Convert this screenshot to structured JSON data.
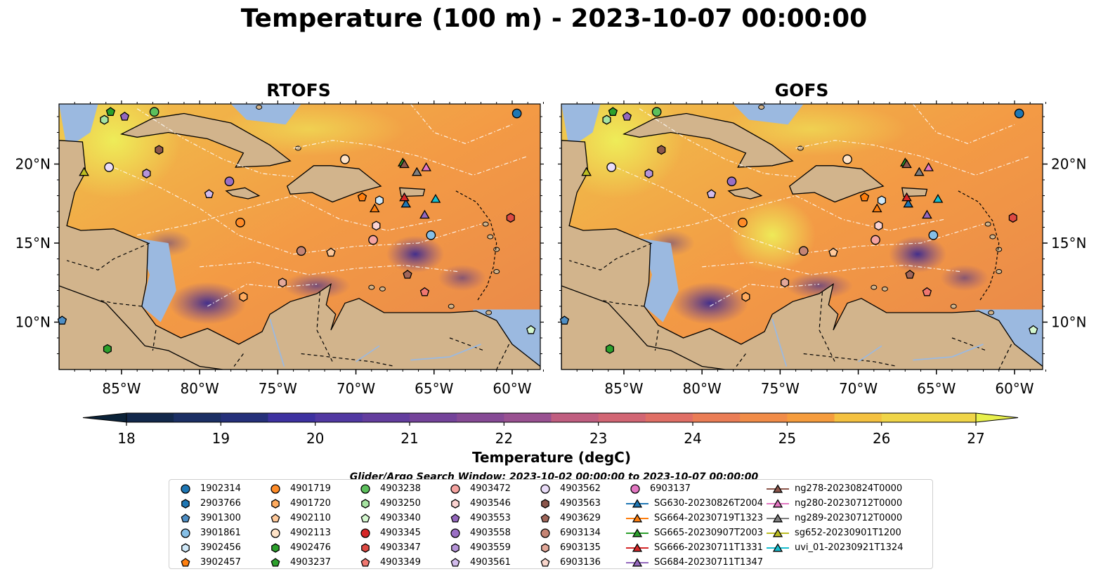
{
  "title": "Temperature (100 m) - 2023-10-07 00:00:00",
  "panels": [
    {
      "title": "RTOFS"
    },
    {
      "title": "GOFS"
    }
  ],
  "axes": {
    "lon_ticks": [
      "85°W",
      "80°W",
      "75°W",
      "70°W",
      "65°W",
      "60°W"
    ],
    "lat_ticks": [
      "20°N",
      "15°N",
      "10°N"
    ],
    "lon_values": [
      -85,
      -80,
      -75,
      -70,
      -65,
      -60
    ],
    "lat_values": [
      20,
      15,
      10
    ],
    "extent": {
      "lon_min": -89,
      "lon_max": -58.2,
      "lat_min": 7,
      "lat_max": 23.8
    }
  },
  "colorbar": {
    "label": "Temperature (degC)",
    "min": 18,
    "max": 27,
    "step": 0.5,
    "ticks": [
      "18",
      "19",
      "20",
      "21",
      "22",
      "23",
      "24",
      "25",
      "26",
      "27"
    ],
    "extend": "both"
  },
  "search_window": "Glider/Argo Search Window: 2023-10-02 00:00:00 to 2023-10-07 00:00:00",
  "colors": {
    "land": "#d2b48c",
    "shelf": "#9bb9e0",
    "deep_cold": "#0b2238",
    "warm": "#f0ad4e",
    "hot": "#e8f04c"
  },
  "legend": [
    {
      "label": "1902314",
      "marker": "circle",
      "color": "#1f77b4"
    },
    {
      "label": "2903766",
      "marker": "hexagon",
      "color": "#1f77b4"
    },
    {
      "label": "3901300",
      "marker": "pentagon",
      "color": "#4e8ec4"
    },
    {
      "label": "3901861",
      "marker": "circle",
      "color": "#86bfe6"
    },
    {
      "label": "3902456",
      "marker": "hexagon",
      "color": "#cfe8f8"
    },
    {
      "label": "3902457",
      "marker": "pentagon",
      "color": "#ff7f0e"
    },
    {
      "label": "4901719",
      "marker": "circle",
      "color": "#ff8c28"
    },
    {
      "label": "4901720",
      "marker": "hexagon",
      "color": "#ffab5e"
    },
    {
      "label": "4902110",
      "marker": "pentagon",
      "color": "#ffc99a"
    },
    {
      "label": "4902113",
      "marker": "circle",
      "color": "#ffe3c7"
    },
    {
      "label": "4902476",
      "marker": "hexagon",
      "color": "#2ca02c"
    },
    {
      "label": "4903237",
      "marker": "pentagon",
      "color": "#2ca02c"
    },
    {
      "label": "4903238",
      "marker": "circle",
      "color": "#5cbf5c"
    },
    {
      "label": "4903250",
      "marker": "hexagon",
      "color": "#a6e3a1"
    },
    {
      "label": "4903340",
      "marker": "pentagon",
      "color": "#d4f7cf"
    },
    {
      "label": "4903345",
      "marker": "circle",
      "color": "#d62728"
    },
    {
      "label": "4903347",
      "marker": "hexagon",
      "color": "#de4a43"
    },
    {
      "label": "4903349",
      "marker": "pentagon",
      "color": "#f07770"
    },
    {
      "label": "4903472",
      "marker": "circle",
      "color": "#f5a3a0"
    },
    {
      "label": "4903546",
      "marker": "hexagon",
      "color": "#fbd3d1"
    },
    {
      "label": "4903553",
      "marker": "pentagon",
      "color": "#9467bd"
    },
    {
      "label": "4903558",
      "marker": "circle",
      "color": "#9a6fc4"
    },
    {
      "label": "4903559",
      "marker": "hexagon",
      "color": "#b594d8"
    },
    {
      "label": "4903561",
      "marker": "pentagon",
      "color": "#d2bbec"
    },
    {
      "label": "4903562",
      "marker": "circle",
      "color": "#e9dcf8"
    },
    {
      "label": "4903563",
      "marker": "hexagon",
      "color": "#8c564b"
    },
    {
      "label": "4903629",
      "marker": "pentagon",
      "color": "#a0665a"
    },
    {
      "label": "6903134",
      "marker": "circle",
      "color": "#c58474"
    },
    {
      "label": "6903135",
      "marker": "hexagon",
      "color": "#e3a899"
    },
    {
      "label": "6903136",
      "marker": "pentagon",
      "color": "#f8d5cb"
    },
    {
      "label": "6903137",
      "marker": "circle",
      "color": "#e377c2"
    },
    {
      "label": "SG630-20230826T2004",
      "marker": "triangle-line",
      "color": "#1f77b4"
    },
    {
      "label": "SG664-20230719T1323",
      "marker": "triangle-line",
      "color": "#ff7f0e"
    },
    {
      "label": "SG665-20230907T2003",
      "marker": "triangle-line",
      "color": "#2ca02c"
    },
    {
      "label": "SG666-20230711T1331",
      "marker": "triangle-line",
      "color": "#d62728"
    },
    {
      "label": "SG684-20230711T1347",
      "marker": "triangle-line",
      "color": "#9467bd"
    },
    {
      "label": "ng278-20230824T0000",
      "marker": "triangle-line",
      "color": "#8c564b"
    },
    {
      "label": "ng280-20230712T0000",
      "marker": "triangle-line",
      "color": "#e377c2"
    },
    {
      "label": "ng289-20230712T0000",
      "marker": "triangle-line",
      "color": "#7f7f7f"
    },
    {
      "label": "sg652-20230901T1200",
      "marker": "triangle-line",
      "color": "#bcbd22"
    },
    {
      "label": "uvi_01-20230921T1324",
      "marker": "triangle-line",
      "color": "#17becf"
    }
  ],
  "observations": [
    {
      "id": "1902314",
      "lon": -59.7,
      "lat": 23.2
    },
    {
      "id": "3901300",
      "lon": -88.8,
      "lat": 10.1
    },
    {
      "id": "3901861",
      "lon": -65.2,
      "lat": 15.5
    },
    {
      "id": "3902456",
      "lon": -68.5,
      "lat": 17.7
    },
    {
      "id": "3902457",
      "lon": -69.6,
      "lat": 17.9
    },
    {
      "id": "4901719",
      "lon": -77.4,
      "lat": 16.3
    },
    {
      "id": "4901720",
      "lon": -77.2,
      "lat": 11.6
    },
    {
      "id": "4902110",
      "lon": -71.6,
      "lat": 14.4
    },
    {
      "id": "4902113",
      "lon": -70.7,
      "lat": 20.3
    },
    {
      "id": "4902476",
      "lon": -85.9,
      "lat": 8.3
    },
    {
      "id": "4903237",
      "lon": -85.7,
      "lat": 23.3
    },
    {
      "id": "4903238",
      "lon": -82.9,
      "lat": 23.3
    },
    {
      "id": "4903250",
      "lon": -86.1,
      "lat": 22.8
    },
    {
      "id": "4903340",
      "lon": -58.8,
      "lat": 9.5
    },
    {
      "id": "4903347",
      "lon": -60.1,
      "lat": 16.6
    },
    {
      "id": "4903349",
      "lon": -65.6,
      "lat": 11.9
    },
    {
      "id": "4903472",
      "lon": -68.9,
      "lat": 15.2
    },
    {
      "id": "4903546",
      "lon": -68.7,
      "lat": 16.1
    },
    {
      "id": "4903553",
      "lon": -84.8,
      "lat": 23.0
    },
    {
      "id": "4903558",
      "lon": -78.1,
      "lat": 18.9
    },
    {
      "id": "4903559",
      "lon": -83.4,
      "lat": 19.4
    },
    {
      "id": "4903561",
      "lon": -79.4,
      "lat": 18.1
    },
    {
      "id": "4903562",
      "lon": -85.8,
      "lat": 19.8
    },
    {
      "id": "4903563",
      "lon": -82.6,
      "lat": 20.9
    },
    {
      "id": "4903629",
      "lon": -66.7,
      "lat": 13.0
    },
    {
      "id": "6903134",
      "lon": -73.5,
      "lat": 14.5
    },
    {
      "id": "6903135",
      "lon": -74.7,
      "lat": 12.5
    },
    {
      "id": "SG630-20230826T2004",
      "lon": -66.8,
      "lat": 17.5
    },
    {
      "id": "SG664-20230719T1323",
      "lon": -68.8,
      "lat": 17.2
    },
    {
      "id": "SG665-20230907T2003",
      "lon": -67.0,
      "lat": 20.1
    },
    {
      "id": "SG666-20230711T1331",
      "lon": -66.9,
      "lat": 17.9
    },
    {
      "id": "SG684-20230711T1347",
      "lon": -65.6,
      "lat": 16.8
    },
    {
      "id": "ng278-20230824T0000",
      "lon": -66.9,
      "lat": 20.0
    },
    {
      "id": "ng280-20230712T0000",
      "lon": -65.5,
      "lat": 19.8
    },
    {
      "id": "ng289-20230712T0000",
      "lon": -66.1,
      "lat": 19.5
    },
    {
      "id": "sg652-20230901T1200",
      "lon": -87.4,
      "lat": 19.5
    },
    {
      "id": "uvi_01-20230921T1324",
      "lon": -64.9,
      "lat": 17.8
    }
  ]
}
